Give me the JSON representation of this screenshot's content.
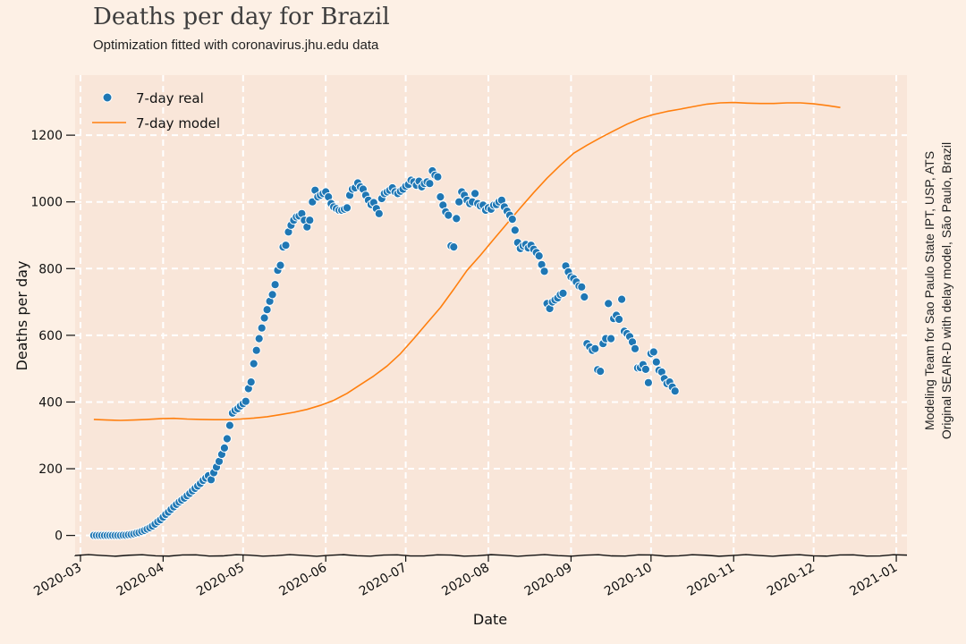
{
  "chart_data": {
    "type": "line",
    "title": "Deaths per day for Brazil",
    "subtitle": "Optimization fitted with coronavirus.jhu.edu data",
    "xlabel": "Date",
    "ylabel": "Deaths per day",
    "credit": [
      "Modeling Team for Sao Paulo State IPT, USP, ATS",
      "Original SEAIR-D with delay model, São Paulo, Brazil"
    ],
    "grid": true,
    "legend_position": "top-left",
    "xlim": [
      "2020-02-28",
      "2021-01-05"
    ],
    "ylim": [
      -60,
      1380
    ],
    "x_ticks": [
      "2020-03",
      "2020-04",
      "2020-05",
      "2020-06",
      "2020-07",
      "2020-08",
      "2020-09",
      "2020-10",
      "2020-11",
      "2020-12",
      "2021-01"
    ],
    "y_ticks": [
      0,
      200,
      400,
      600,
      800,
      1000,
      1200
    ],
    "series": [
      {
        "name": "7-day real",
        "kind": "scatter",
        "color": "#1f77b4",
        "start_date": "2020-03-06",
        "values": [
          0,
          0,
          0,
          0,
          0,
          0,
          0,
          0,
          0,
          0,
          0,
          1,
          1,
          2,
          3,
          5,
          7,
          9,
          12,
          15,
          19,
          23,
          28,
          34,
          41,
          47,
          55,
          63,
          70,
          78,
          86,
          93,
          100,
          106,
          112,
          119,
          126,
          134,
          141,
          148,
          156,
          165,
          172,
          179,
          167,
          188,
          205,
          222,
          243,
          262,
          290,
          330,
          367,
          375,
          380,
          388,
          395,
          402,
          440,
          460,
          515,
          555,
          590,
          622,
          652,
          677,
          702,
          722,
          752,
          795,
          810,
          865,
          870,
          910,
          930,
          945,
          955,
          958,
          965,
          945,
          925,
          945,
          1000,
          1035,
          1015,
          1020,
          1025,
          1030,
          1015,
          995,
          985,
          980,
          975,
          975,
          978,
          982,
          1020,
          1038,
          1042,
          1057,
          1045,
          1038,
          1020,
          1005,
          992,
          998,
          980,
          965,
          1010,
          1025,
          1030,
          1035,
          1042,
          1030,
          1025,
          1032,
          1038,
          1047,
          1052,
          1065,
          1060,
          1050,
          1062,
          1045,
          1055,
          1060,
          1055,
          1093,
          1080,
          1075,
          1015,
          990,
          970,
          960,
          868,
          865,
          950,
          1000,
          1030,
          1020,
          1005,
          995,
          1000,
          1025,
          995,
          988,
          990,
          975,
          982,
          978,
          990,
          992,
          1000,
          1005,
          985,
          972,
          960,
          948,
          915,
          878,
          860,
          868,
          872,
          862,
          870,
          858,
          848,
          838,
          812,
          792,
          695,
          680,
          700,
          706,
          712,
          722,
          726,
          808,
          790,
          775,
          770,
          760,
          748,
          745,
          715,
          575,
          565,
          555,
          560,
          497,
          492,
          575,
          590,
          695,
          590,
          650,
          660,
          648,
          708,
          612,
          605,
          596,
          580,
          560,
          502,
          503,
          512,
          498,
          458,
          545,
          550,
          520,
          495,
          490,
          470,
          455,
          460,
          445,
          433
        ]
      },
      {
        "name": "7-day model",
        "kind": "line",
        "color": "#ff7f0e",
        "start_date": "2020-03-06",
        "step_days": 5,
        "values": [
          348,
          346,
          345,
          346,
          348,
          350,
          351,
          349,
          348,
          347,
          347,
          349,
          352,
          356,
          362,
          369,
          378,
          390,
          405,
          426,
          452,
          478,
          508,
          545,
          590,
          637,
          683,
          738,
          795,
          840,
          888,
          935,
          982,
          1028,
          1071,
          1110,
          1146,
          1170,
          1192,
          1213,
          1233,
          1250,
          1262,
          1271,
          1278,
          1286,
          1293,
          1297,
          1298,
          1296,
          1295,
          1295,
          1297,
          1297,
          1294,
          1289,
          1283
        ]
      }
    ]
  }
}
